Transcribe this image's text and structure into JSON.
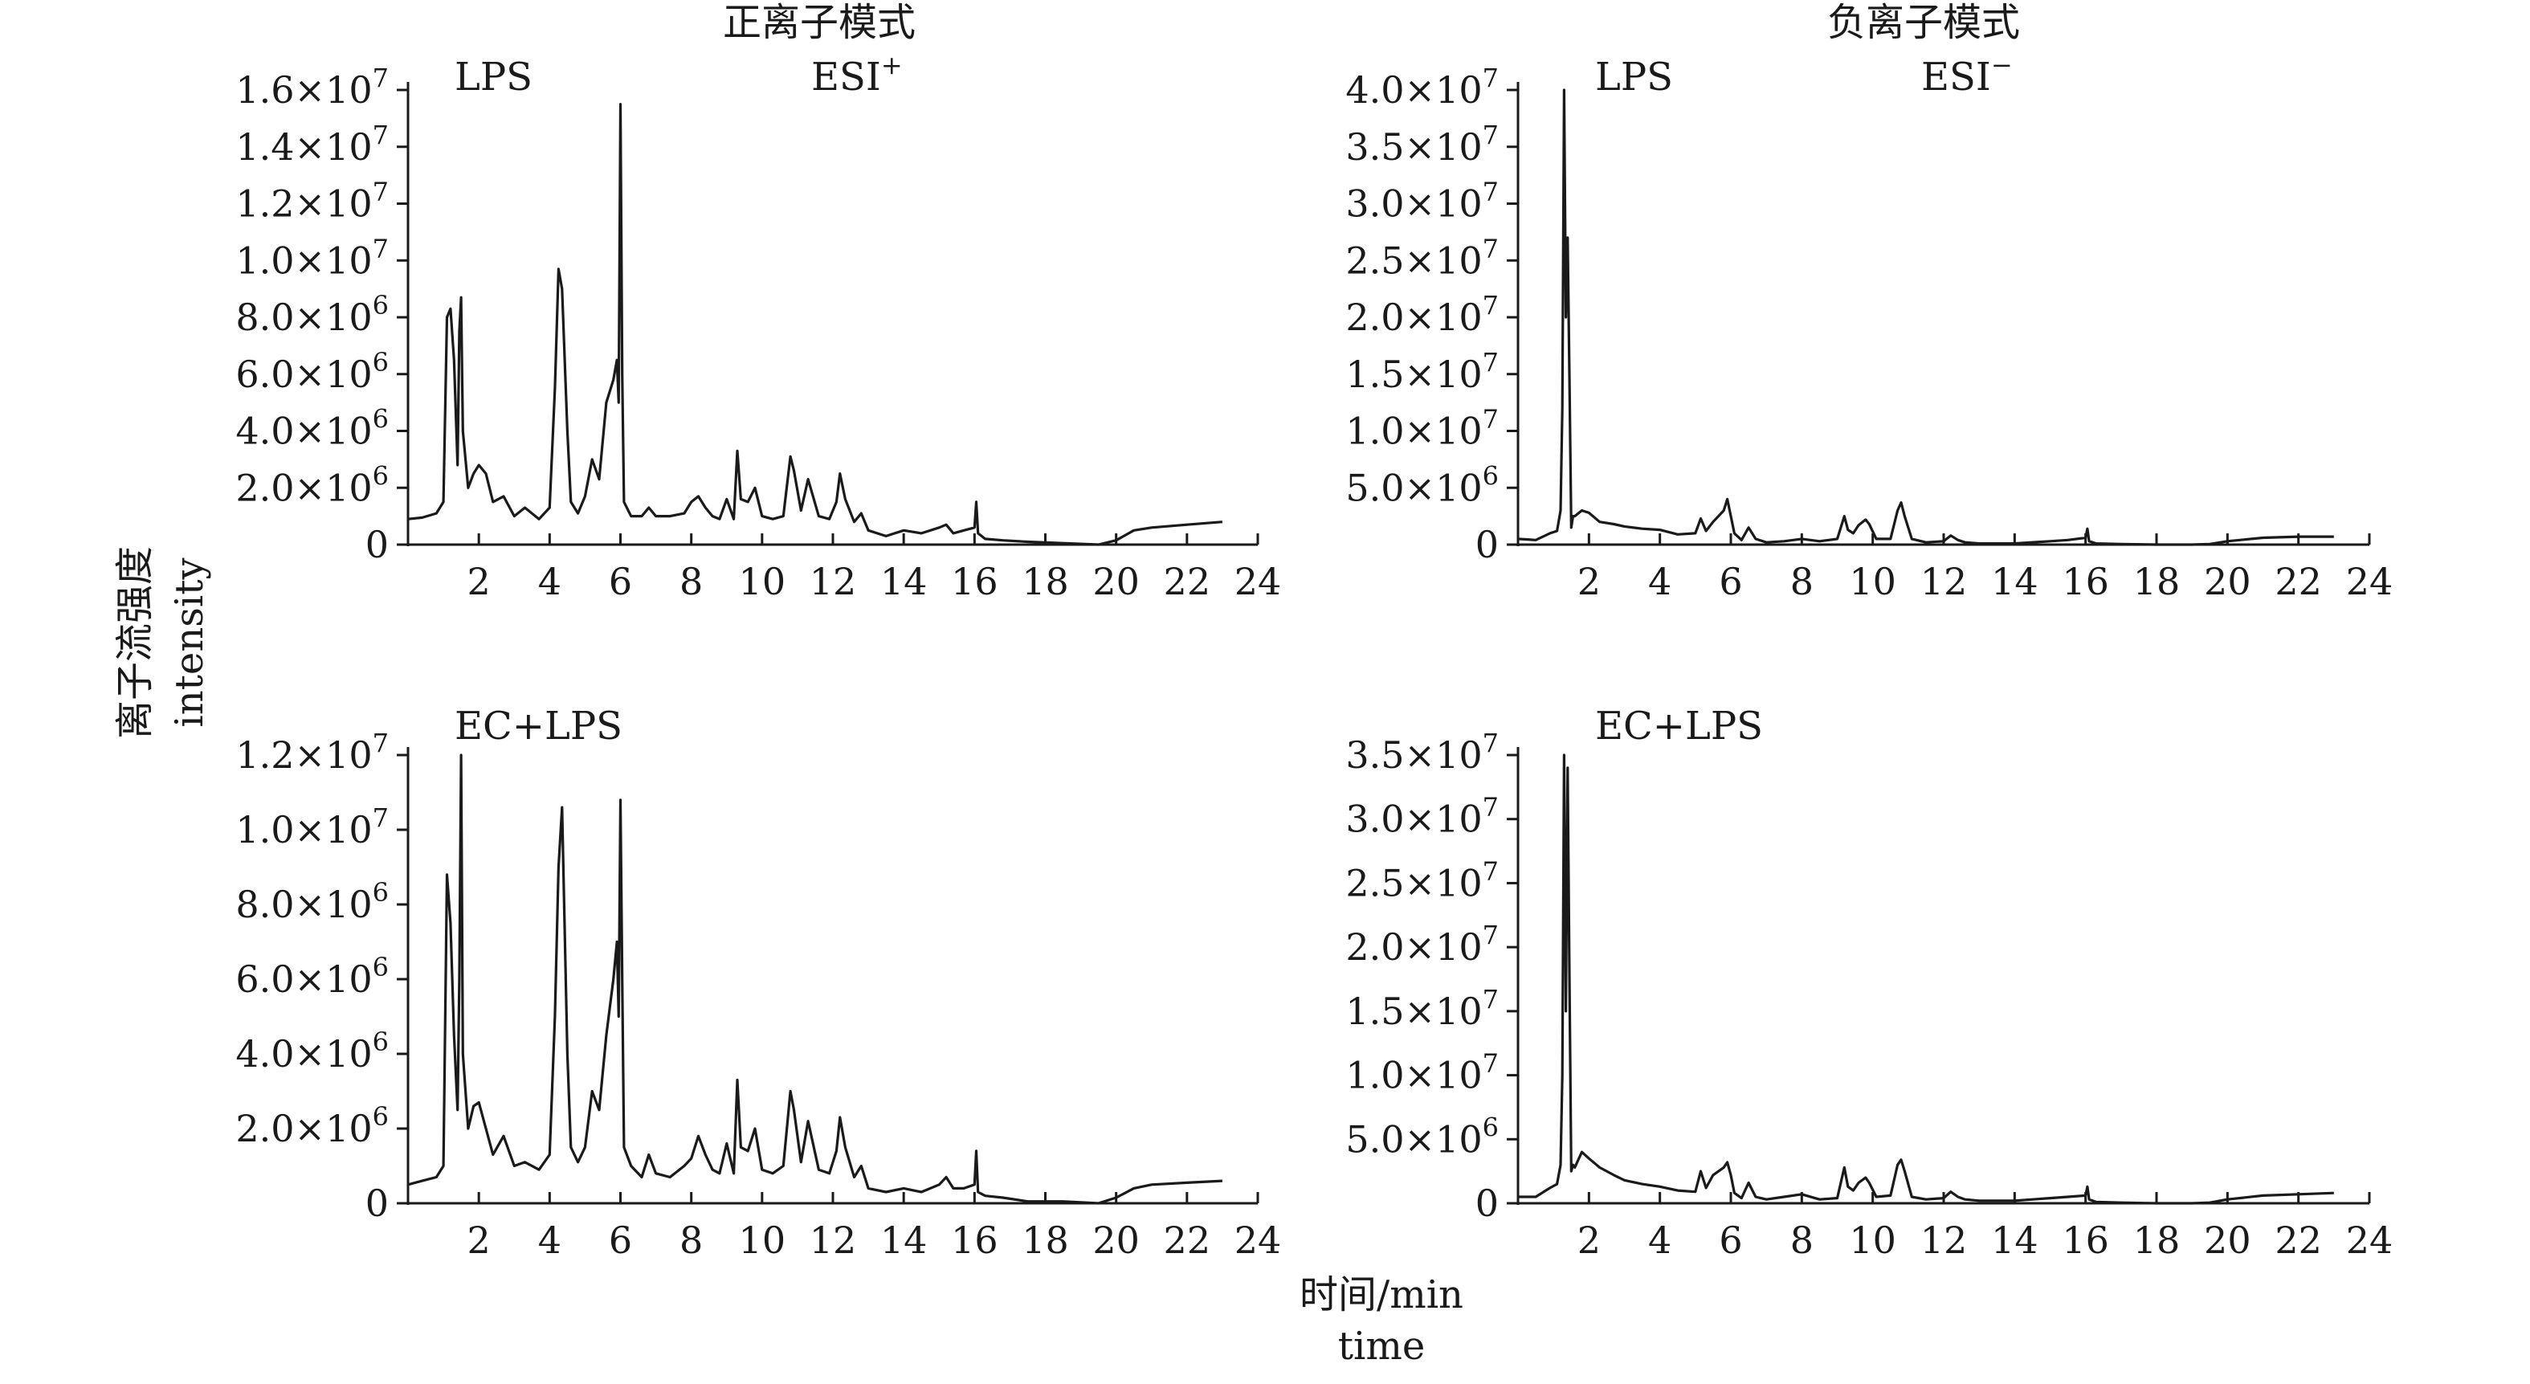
{
  "shared": {
    "y_axis_label_cn": "离子流强度",
    "y_axis_label_en": "intensity",
    "x_axis_label_cn": "时间/min",
    "x_axis_label_en": "time"
  },
  "chart_data": [
    {
      "type": "line",
      "panel": "top-left",
      "column_title": "正离子模式",
      "sample_label": "LPS",
      "mode_label": "ESI",
      "mode_sign": "+",
      "xlim": [
        0,
        24
      ],
      "x_ticks": [
        2,
        4,
        6,
        8,
        10,
        12,
        14,
        16,
        18,
        20,
        22,
        24
      ],
      "ylim": [
        0,
        16000000
      ],
      "y_ticks": [
        {
          "value": 0,
          "mantissa": "0",
          "exp": ""
        },
        {
          "value": 2000000,
          "mantissa": "2.0×10",
          "exp": "6"
        },
        {
          "value": 4000000,
          "mantissa": "4.0×10",
          "exp": "6"
        },
        {
          "value": 6000000,
          "mantissa": "6.0×10",
          "exp": "6"
        },
        {
          "value": 8000000,
          "mantissa": "8.0×10",
          "exp": "6"
        },
        {
          "value": 10000000,
          "mantissa": "1.0×10",
          "exp": "7"
        },
        {
          "value": 12000000,
          "mantissa": "1.2×10",
          "exp": "7"
        },
        {
          "value": 14000000,
          "mantissa": "1.4×10",
          "exp": "7"
        },
        {
          "value": 16000000,
          "mantissa": "1.6×10",
          "exp": "7"
        }
      ],
      "series": [
        {
          "x": [
            0,
            0.4,
            0.8,
            1.0,
            1.1,
            1.2,
            1.3,
            1.4,
            1.45,
            1.5,
            1.55,
            1.7,
            1.85,
            2.0,
            2.2,
            2.4,
            2.7,
            3.0,
            3.3,
            3.7,
            4.0,
            4.15,
            4.25,
            4.35,
            4.5,
            4.6,
            4.8,
            5.0,
            5.2,
            5.4,
            5.6,
            5.8,
            5.9,
            5.95,
            6.0,
            6.05,
            6.1,
            6.3,
            6.6,
            6.8,
            7.0,
            7.4,
            7.8,
            8.0,
            8.2,
            8.4,
            8.6,
            8.8,
            9.0,
            9.2,
            9.3,
            9.4,
            9.6,
            9.8,
            10.0,
            10.3,
            10.6,
            10.8,
            10.9,
            11.1,
            11.3,
            11.6,
            11.9,
            12.1,
            12.2,
            12.35,
            12.6,
            12.8,
            13.0,
            13.5,
            14.0,
            14.5,
            15.0,
            15.2,
            15.4,
            15.7,
            16.0,
            16.05,
            16.1,
            16.3,
            16.8,
            17.5,
            18.5,
            19.5,
            20.0,
            20.5,
            21.0,
            22.0,
            23.0
          ],
          "y": [
            900000,
            950000,
            1100000,
            1500000,
            8000000,
            8300000,
            6500000,
            2800000,
            7500000,
            8700000,
            4000000,
            2000000,
            2500000,
            2800000,
            2500000,
            1500000,
            1700000,
            1000000,
            1300000,
            900000,
            1300000,
            5500000,
            9700000,
            9000000,
            4000000,
            1500000,
            1100000,
            1700000,
            3000000,
            2300000,
            5000000,
            5800000,
            6500000,
            5000000,
            15500000,
            6000000,
            1500000,
            1000000,
            1000000,
            1300000,
            1000000,
            1000000,
            1100000,
            1500000,
            1700000,
            1300000,
            1000000,
            900000,
            1600000,
            900000,
            3300000,
            1600000,
            1500000,
            2000000,
            1000000,
            900000,
            1000000,
            3100000,
            2600000,
            1200000,
            2300000,
            1000000,
            900000,
            1500000,
            2500000,
            1600000,
            800000,
            1100000,
            500000,
            300000,
            500000,
            400000,
            600000,
            700000,
            400000,
            500000,
            600000,
            1500000,
            400000,
            200000,
            150000,
            100000,
            50000,
            0,
            150000,
            500000,
            600000,
            700000,
            800000
          ]
        }
      ]
    },
    {
      "type": "line",
      "panel": "top-right",
      "column_title": "负离子模式",
      "sample_label": "LPS",
      "mode_label": "ESI",
      "mode_sign": "−",
      "xlim": [
        0,
        24
      ],
      "x_ticks": [
        2,
        4,
        6,
        8,
        10,
        12,
        14,
        16,
        18,
        20,
        22,
        24
      ],
      "ylim": [
        0,
        40000000
      ],
      "y_ticks": [
        {
          "value": 0,
          "mantissa": "0",
          "exp": ""
        },
        {
          "value": 5000000,
          "mantissa": "5.0×10",
          "exp": "6"
        },
        {
          "value": 10000000,
          "mantissa": "1.0×10",
          "exp": "7"
        },
        {
          "value": 15000000,
          "mantissa": "1.5×10",
          "exp": "7"
        },
        {
          "value": 20000000,
          "mantissa": "2.0×10",
          "exp": "7"
        },
        {
          "value": 25000000,
          "mantissa": "2.5×10",
          "exp": "7"
        },
        {
          "value": 30000000,
          "mantissa": "3.0×10",
          "exp": "7"
        },
        {
          "value": 35000000,
          "mantissa": "3.5×10",
          "exp": "7"
        },
        {
          "value": 40000000,
          "mantissa": "4.0×10",
          "exp": "7"
        }
      ],
      "series": [
        {
          "x": [
            0,
            0.5,
            0.9,
            1.1,
            1.2,
            1.25,
            1.3,
            1.35,
            1.4,
            1.45,
            1.5,
            1.55,
            1.6,
            1.8,
            2.0,
            2.3,
            2.7,
            3.0,
            3.5,
            4.0,
            4.5,
            5.0,
            5.15,
            5.3,
            5.5,
            5.8,
            5.9,
            6.0,
            6.1,
            6.3,
            6.5,
            6.7,
            7.0,
            7.5,
            8.0,
            8.5,
            9.0,
            9.2,
            9.3,
            9.45,
            9.6,
            9.8,
            9.9,
            10.1,
            10.5,
            10.7,
            10.8,
            10.9,
            11.1,
            11.5,
            12.0,
            12.2,
            12.4,
            12.6,
            13.0,
            14.0,
            15.0,
            15.5,
            16.0,
            16.05,
            16.1,
            16.3,
            17.0,
            18.0,
            19.0,
            19.5,
            20.0,
            21.0,
            22.0,
            23.0
          ],
          "y": [
            500000,
            400000,
            1000000,
            1200000,
            3000000,
            12000000,
            40000000,
            20000000,
            27000000,
            15000000,
            1500000,
            2500000,
            2500000,
            3000000,
            2800000,
            2000000,
            1800000,
            1600000,
            1400000,
            1300000,
            900000,
            1000000,
            2300000,
            1200000,
            2000000,
            3000000,
            4000000,
            2500000,
            1000000,
            400000,
            1500000,
            500000,
            200000,
            300000,
            500000,
            300000,
            500000,
            2500000,
            1300000,
            1000000,
            1700000,
            2200000,
            1800000,
            500000,
            500000,
            3000000,
            3700000,
            2500000,
            500000,
            200000,
            300000,
            800000,
            400000,
            200000,
            100000,
            100000,
            300000,
            400000,
            600000,
            1400000,
            300000,
            100000,
            50000,
            0,
            0,
            50000,
            300000,
            600000,
            700000,
            700000
          ]
        }
      ]
    },
    {
      "type": "line",
      "panel": "bottom-left",
      "sample_label": "EC+LPS",
      "xlim": [
        0,
        24
      ],
      "x_ticks": [
        2,
        4,
        6,
        8,
        10,
        12,
        14,
        16,
        18,
        20,
        22,
        24
      ],
      "ylim": [
        0,
        12000000
      ],
      "y_ticks": [
        {
          "value": 0,
          "mantissa": "0",
          "exp": ""
        },
        {
          "value": 2000000,
          "mantissa": "2.0×10",
          "exp": "6"
        },
        {
          "value": 4000000,
          "mantissa": "4.0×10",
          "exp": "6"
        },
        {
          "value": 6000000,
          "mantissa": "6.0×10",
          "exp": "6"
        },
        {
          "value": 8000000,
          "mantissa": "8.0×10",
          "exp": "6"
        },
        {
          "value": 10000000,
          "mantissa": "1.0×10",
          "exp": "7"
        },
        {
          "value": 12000000,
          "mantissa": "1.2×10",
          "exp": "7"
        }
      ],
      "series": [
        {
          "x": [
            0,
            0.4,
            0.8,
            1.0,
            1.1,
            1.2,
            1.3,
            1.4,
            1.45,
            1.5,
            1.55,
            1.7,
            1.85,
            2.0,
            2.2,
            2.4,
            2.7,
            3.0,
            3.3,
            3.7,
            4.0,
            4.15,
            4.25,
            4.35,
            4.5,
            4.6,
            4.8,
            5.0,
            5.2,
            5.4,
            5.6,
            5.8,
            5.9,
            5.95,
            6.0,
            6.05,
            6.1,
            6.3,
            6.6,
            6.8,
            7.0,
            7.4,
            7.8,
            8.0,
            8.2,
            8.4,
            8.6,
            8.8,
            9.0,
            9.2,
            9.3,
            9.4,
            9.6,
            9.8,
            10.0,
            10.3,
            10.6,
            10.8,
            10.9,
            11.1,
            11.3,
            11.6,
            11.9,
            12.1,
            12.2,
            12.35,
            12.6,
            12.8,
            13.0,
            13.5,
            14.0,
            14.5,
            15.0,
            15.2,
            15.4,
            15.7,
            16.0,
            16.05,
            16.1,
            16.3,
            16.8,
            17.5,
            18.5,
            19.5,
            20.0,
            20.5,
            21.0,
            22.0,
            23.0
          ],
          "y": [
            500000,
            600000,
            700000,
            1000000,
            8800000,
            7500000,
            4500000,
            2500000,
            6000000,
            12000000,
            4000000,
            2000000,
            2600000,
            2700000,
            2000000,
            1300000,
            1800000,
            1000000,
            1100000,
            900000,
            1300000,
            5000000,
            9000000,
            10600000,
            4000000,
            1500000,
            1100000,
            1500000,
            3000000,
            2500000,
            4500000,
            6000000,
            7000000,
            5000000,
            10800000,
            6000000,
            1500000,
            1000000,
            700000,
            1300000,
            800000,
            700000,
            1000000,
            1200000,
            1800000,
            1300000,
            900000,
            800000,
            1600000,
            800000,
            3300000,
            1500000,
            1400000,
            2000000,
            900000,
            800000,
            1000000,
            3000000,
            2500000,
            1100000,
            2200000,
            900000,
            800000,
            1400000,
            2300000,
            1500000,
            700000,
            1000000,
            400000,
            300000,
            400000,
            300000,
            500000,
            700000,
            400000,
            400000,
            500000,
            1400000,
            300000,
            200000,
            150000,
            50000,
            50000,
            0,
            150000,
            400000,
            500000,
            550000,
            600000
          ]
        }
      ]
    },
    {
      "type": "line",
      "panel": "bottom-right",
      "sample_label": "EC+LPS",
      "xlim": [
        0,
        24
      ],
      "x_ticks": [
        2,
        4,
        6,
        8,
        10,
        12,
        14,
        16,
        18,
        20,
        22,
        24
      ],
      "ylim": [
        0,
        35000000
      ],
      "y_ticks": [
        {
          "value": 0,
          "mantissa": "0",
          "exp": ""
        },
        {
          "value": 5000000,
          "mantissa": "5.0×10",
          "exp": "6"
        },
        {
          "value": 10000000,
          "mantissa": "1.0×10",
          "exp": "7"
        },
        {
          "value": 15000000,
          "mantissa": "1.5×10",
          "exp": "7"
        },
        {
          "value": 20000000,
          "mantissa": "2.0×10",
          "exp": "7"
        },
        {
          "value": 25000000,
          "mantissa": "2.5×10",
          "exp": "7"
        },
        {
          "value": 30000000,
          "mantissa": "3.0×10",
          "exp": "7"
        },
        {
          "value": 35000000,
          "mantissa": "3.5×10",
          "exp": "7"
        }
      ],
      "series": [
        {
          "x": [
            0,
            0.5,
            0.9,
            1.1,
            1.2,
            1.25,
            1.3,
            1.35,
            1.4,
            1.45,
            1.5,
            1.55,
            1.6,
            1.8,
            2.0,
            2.3,
            2.7,
            3.0,
            3.5,
            4.0,
            4.5,
            5.0,
            5.15,
            5.3,
            5.5,
            5.8,
            5.9,
            6.0,
            6.1,
            6.3,
            6.5,
            6.7,
            7.0,
            7.5,
            8.0,
            8.5,
            9.0,
            9.2,
            9.3,
            9.45,
            9.6,
            9.8,
            9.9,
            10.1,
            10.5,
            10.7,
            10.8,
            10.9,
            11.1,
            11.5,
            12.0,
            12.2,
            12.4,
            12.6,
            13.0,
            14.0,
            15.0,
            15.5,
            16.0,
            16.05,
            16.1,
            16.3,
            17.0,
            18.0,
            19.0,
            19.5,
            20.0,
            21.0,
            22.0,
            23.0
          ],
          "y": [
            500000,
            500000,
            1200000,
            1500000,
            3000000,
            10000000,
            35000000,
            15000000,
            34000000,
            18000000,
            2500000,
            3000000,
            2800000,
            4000000,
            3500000,
            2800000,
            2200000,
            1800000,
            1500000,
            1300000,
            1000000,
            900000,
            2500000,
            1200000,
            2200000,
            2800000,
            3200000,
            2200000,
            800000,
            400000,
            1600000,
            500000,
            300000,
            500000,
            700000,
            300000,
            400000,
            2800000,
            1300000,
            1000000,
            1600000,
            2000000,
            1600000,
            500000,
            600000,
            3000000,
            3400000,
            2500000,
            500000,
            300000,
            400000,
            900000,
            500000,
            300000,
            200000,
            200000,
            400000,
            500000,
            600000,
            1300000,
            300000,
            100000,
            50000,
            0,
            0,
            50000,
            300000,
            600000,
            700000,
            800000
          ]
        }
      ]
    }
  ]
}
